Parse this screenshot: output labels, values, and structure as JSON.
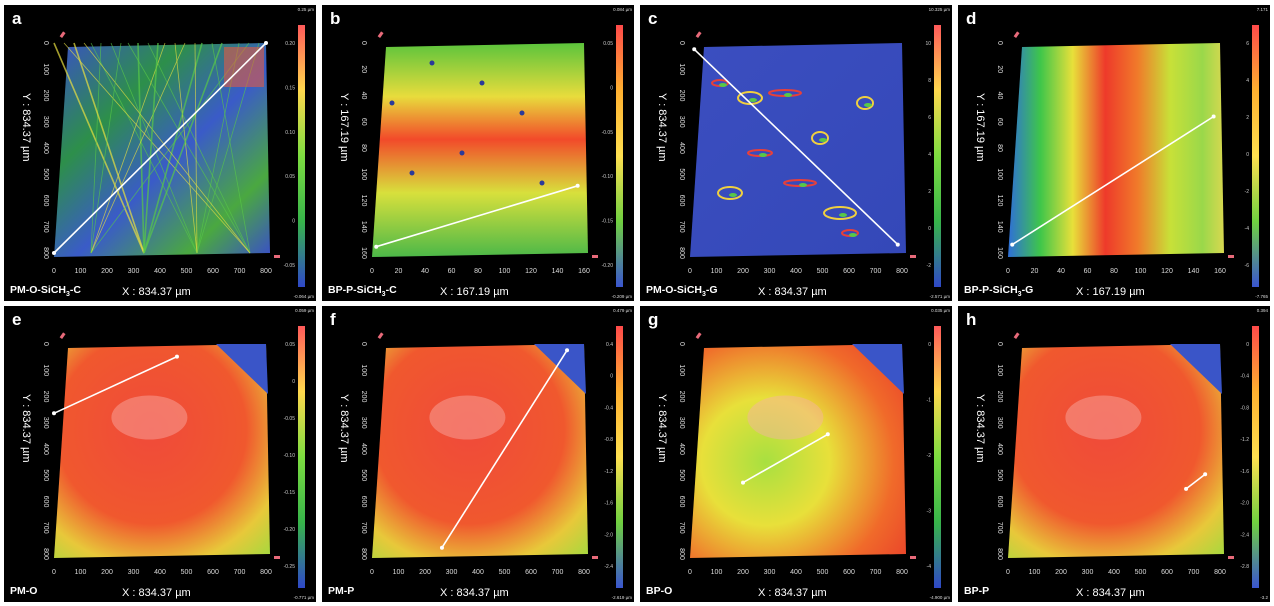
{
  "panels": [
    {
      "letter": "a",
      "sample": "PM-O-SiCH",
      "sample_sub": "3",
      "sample_tail": "-C",
      "xlabel": "X : 834.37 µm",
      "ylabel": "Y : 834.37 µm",
      "scale_max": "0.25 µm",
      "scale_min": "-0.064 µm",
      "x_ticks": [
        "0",
        "100",
        "200",
        "300",
        "400",
        "500",
        "600",
        "700",
        "800"
      ],
      "y_ticks": [
        "0",
        "100",
        "200",
        "300",
        "400",
        "500",
        "600",
        "700",
        "800"
      ],
      "scale_ticks": [
        "0.20",
        "0.15",
        "0.10",
        "0.05",
        "0",
        "-0.05"
      ],
      "palette": "scratch"
    },
    {
      "letter": "b",
      "sample": "BP-P-SiCH",
      "sample_sub": "3",
      "sample_tail": "-C",
      "xlabel": "X : 167.19 µm",
      "ylabel": "Y : 167.19 µm",
      "scale_max": "0.084 µm",
      "scale_min": "-0.209 µm",
      "x_ticks": [
        "0",
        "20",
        "40",
        "60",
        "80",
        "100",
        "120",
        "140",
        "160"
      ],
      "y_ticks": [
        "0",
        "20",
        "40",
        "60",
        "80",
        "100",
        "120",
        "140",
        "160"
      ],
      "scale_ticks": [
        "0.05",
        "0",
        "-0.05",
        "-0.10",
        "-0.15",
        "-0.20"
      ],
      "palette": "redgreen"
    },
    {
      "letter": "c",
      "sample": "PM-O-SiCH",
      "sample_sub": "3",
      "sample_tail": "-G",
      "xlabel": "X : 834.37 µm",
      "ylabel": "Y : 834.37 µm",
      "scale_max": "10.325 µm",
      "scale_min": "-2.571 µm",
      "x_ticks": [
        "0",
        "100",
        "200",
        "300",
        "400",
        "500",
        "600",
        "700",
        "800"
      ],
      "y_ticks": [
        "0",
        "100",
        "200",
        "300",
        "400",
        "500",
        "600",
        "700",
        "800"
      ],
      "scale_ticks": [
        "10",
        "8",
        "6",
        "4",
        "2",
        "0",
        "-2"
      ],
      "palette": "blue"
    },
    {
      "letter": "d",
      "sample": "BP-P-SiCH",
      "sample_sub": "3",
      "sample_tail": "-G",
      "xlabel": "X : 167.19 µm",
      "ylabel": "Y : 167.19 µm",
      "scale_max": "7.171",
      "scale_min": "-7.765",
      "x_ticks": [
        "0",
        "20",
        "40",
        "60",
        "80",
        "100",
        "120",
        "140",
        "160"
      ],
      "y_ticks": [
        "0",
        "20",
        "40",
        "60",
        "80",
        "100",
        "120",
        "140",
        "160"
      ],
      "scale_ticks": [
        "6",
        "4",
        "2",
        "0",
        "-2",
        "-4",
        "-6"
      ],
      "palette": "rainbow"
    },
    {
      "letter": "e",
      "sample": "PM-O",
      "sample_sub": "",
      "sample_tail": "",
      "xlabel": "X : 834.37 µm",
      "ylabel": "Y : 834.37 µm",
      "scale_max": "0.059 µm",
      "scale_min": "-0.771 µm",
      "x_ticks": [
        "0",
        "100",
        "200",
        "300",
        "400",
        "500",
        "600",
        "700",
        "800"
      ],
      "y_ticks": [
        "0",
        "100",
        "200",
        "300",
        "400",
        "500",
        "600",
        "700",
        "800"
      ],
      "scale_ticks": [
        "0.05",
        "0",
        "-0.05",
        "-0.10",
        "-0.15",
        "-0.20",
        "-0.25"
      ],
      "palette": "warm"
    },
    {
      "letter": "f",
      "sample": "PM-P",
      "sample_sub": "",
      "sample_tail": "",
      "xlabel": "X : 834.37 µm",
      "ylabel": "Y : 834.37 µm",
      "scale_max": "0.479 µm",
      "scale_min": "-2.619 µm",
      "x_ticks": [
        "0",
        "100",
        "200",
        "300",
        "400",
        "500",
        "600",
        "700",
        "800"
      ],
      "y_ticks": [
        "0",
        "100",
        "200",
        "300",
        "400",
        "500",
        "600",
        "700",
        "800"
      ],
      "scale_ticks": [
        "0.4",
        "0",
        "-0.4",
        "-0.8",
        "-1.2",
        "-1.6",
        "-2.0",
        "-2.4"
      ],
      "palette": "warm"
    },
    {
      "letter": "g",
      "sample": "BP-O",
      "sample_sub": "",
      "sample_tail": "",
      "xlabel": "X : 834.37 µm",
      "ylabel": "Y : 834.37 µm",
      "scale_max": "0.035 µm",
      "scale_min": "-4.900 µm",
      "x_ticks": [
        "0",
        "100",
        "200",
        "300",
        "400",
        "500",
        "600",
        "700",
        "800"
      ],
      "y_ticks": [
        "0",
        "100",
        "200",
        "300",
        "400",
        "500",
        "600",
        "700",
        "800"
      ],
      "scale_ticks": [
        "0",
        "-1",
        "-2",
        "-3",
        "-4"
      ],
      "palette": "warmgreen"
    },
    {
      "letter": "h",
      "sample": "BP-P",
      "sample_sub": "",
      "sample_tail": "",
      "xlabel": "X : 834.37 µm",
      "ylabel": "Y : 834.37 µm",
      "scale_max": "0.394",
      "scale_min": "-3.2",
      "x_ticks": [
        "0",
        "100",
        "200",
        "300",
        "400",
        "500",
        "600",
        "700",
        "800"
      ],
      "y_ticks": [
        "0",
        "100",
        "200",
        "300",
        "400",
        "500",
        "600",
        "700",
        "800"
      ],
      "scale_ticks": [
        "0",
        "-0.4",
        "-0.8",
        "-1.2",
        "-1.6",
        "-2.0",
        "-2.4",
        "-2.8"
      ],
      "palette": "warm"
    }
  ]
}
